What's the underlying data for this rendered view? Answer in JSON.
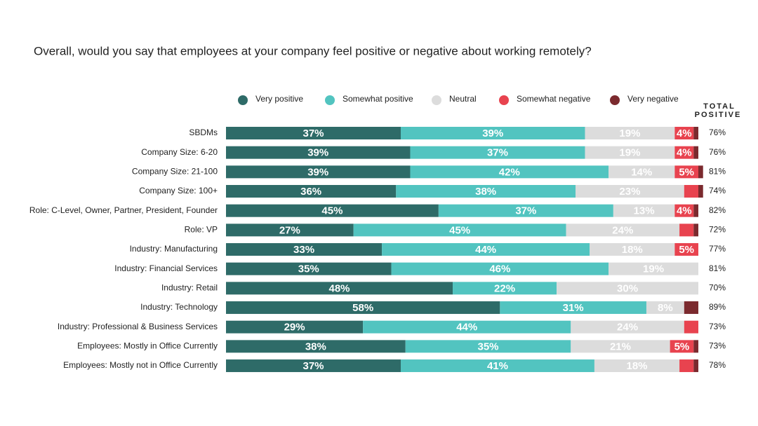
{
  "chart_data": {
    "type": "bar",
    "orientation": "horizontal",
    "stacked": true,
    "title": "Overall, would you say that employees at your company feel positive or negative about working remotely?",
    "categories": [
      "SBDMs",
      "Company Size: 6-20",
      "Company Size: 21-100",
      "Company Size: 100+",
      "Role: C-Level, Owner, Partner, President, Founder",
      "Role: VP",
      "Industry: Manufacturing",
      "Industry: Financial Services",
      "Industry: Retail",
      "Industry: Technology",
      "Industry: Professional & Business Services",
      "Employees: Mostly in Office Currently",
      "Employees: Mostly not in Office Currently"
    ],
    "xlim": [
      0,
      100
    ],
    "series": [
      {
        "name": "Very positive",
        "color": "#2e6b68",
        "values": [
          37,
          39,
          39,
          36,
          45,
          27,
          33,
          35,
          48,
          58,
          29,
          38,
          37
        ],
        "value_labels": [
          "37%",
          "39%",
          "39%",
          "36%",
          "45%",
          "27%",
          "33%",
          "35%",
          "48%",
          "58%",
          "29%",
          "38%",
          "37%"
        ]
      },
      {
        "name": "Somewhat positive",
        "color": "#52c4c0",
        "values": [
          39,
          37,
          42,
          38,
          37,
          45,
          44,
          46,
          22,
          31,
          44,
          35,
          41
        ],
        "value_labels": [
          "39%",
          "37%",
          "42%",
          "38%",
          "37%",
          "45%",
          "44%",
          "46%",
          "22%",
          "31%",
          "44%",
          "35%",
          "41%"
        ]
      },
      {
        "name": "Neutral",
        "color": "#dcdcdc",
        "values": [
          19,
          19,
          14,
          23,
          13,
          24,
          18,
          19,
          30,
          8,
          24,
          21,
          18
        ],
        "value_labels": [
          "19%",
          "19%",
          "14%",
          "23%",
          "13%",
          "24%",
          "18%",
          "19%",
          "30%",
          "8%",
          "24%",
          "21%",
          "18%"
        ]
      },
      {
        "name": "Somewhat negative",
        "color": "#e8434f",
        "values": [
          4,
          4,
          5,
          3,
          4,
          3,
          5,
          0,
          0,
          0,
          3,
          5,
          3
        ],
        "value_labels": [
          "4%",
          "4%",
          "5%",
          null,
          "4%",
          null,
          "5%",
          null,
          null,
          null,
          null,
          "5%",
          null
        ]
      },
      {
        "name": "Very negative",
        "color": "#7b2a2e",
        "values": [
          1,
          1,
          1,
          1,
          1,
          1,
          0,
          0,
          0,
          3,
          0,
          1,
          1
        ],
        "value_labels": [
          null,
          null,
          null,
          null,
          null,
          null,
          null,
          null,
          null,
          null,
          null,
          null,
          null
        ]
      }
    ],
    "total_header": [
      "TOTAL",
      "POSITIVE"
    ],
    "total_positive": [
      "76%",
      "76%",
      "81%",
      "74%",
      "82%",
      "72%",
      "77%",
      "81%",
      "70%",
      "89%",
      "73%",
      "73%",
      "78%"
    ],
    "legend": "top"
  }
}
